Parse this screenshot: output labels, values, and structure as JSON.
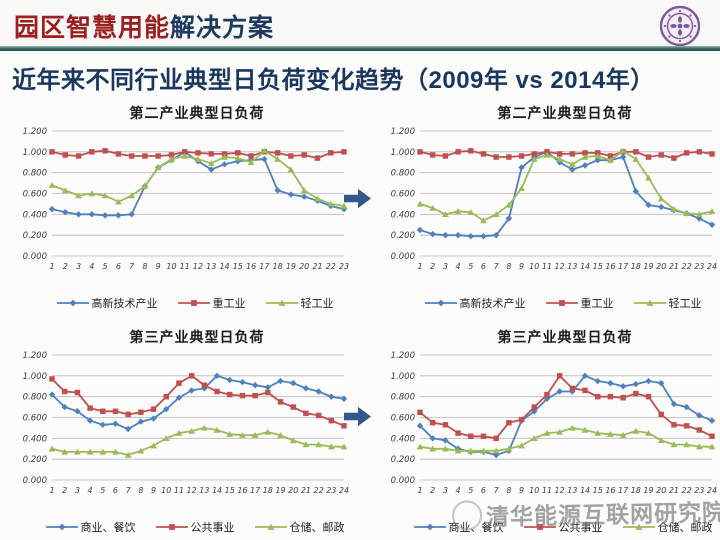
{
  "slide": {
    "header": {
      "title_red": "园区智慧用能",
      "title_blue": "解决方案",
      "logo_name": "tsinghua-university-seal"
    },
    "banner_title": "近年来不同行业典型日负荷变化趋势（2009年 vs 2014年）",
    "watermark": "清华能源互联网研究院"
  },
  "colors": {
    "series_blue": "#4F81BD",
    "series_red": "#C0504D",
    "series_green": "#9BBB59",
    "arrow_blue": "#31598E",
    "banner_text": "#17375E",
    "header_red": "#9C1E1E",
    "header_navy": "#1F3A5F",
    "gridline": "#B8B8B8"
  },
  "chart_data": [
    {
      "id": "secondary-industry-2009",
      "type": "line",
      "title": "第二产业典型日负荷",
      "x": [
        1,
        2,
        3,
        4,
        5,
        6,
        7,
        8,
        9,
        10,
        11,
        12,
        13,
        14,
        15,
        16,
        17,
        18,
        19,
        20,
        21,
        22,
        23
      ],
      "ylim": [
        0,
        1.2
      ],
      "ytick_step": 0.2,
      "grid": true,
      "legend_position": "bottom",
      "series": [
        {
          "name": "高新技术产业",
          "color": "#4F81BD",
          "marker": "diamond",
          "values": [
            0.45,
            0.42,
            0.4,
            0.4,
            0.39,
            0.39,
            0.4,
            0.67,
            0.85,
            0.92,
            1.0,
            0.91,
            0.83,
            0.88,
            0.91,
            0.92,
            0.93,
            0.63,
            0.59,
            0.57,
            0.53,
            0.48,
            0.45
          ]
        },
        {
          "name": "重工业",
          "color": "#C0504D",
          "marker": "square",
          "values": [
            1.0,
            0.97,
            0.96,
            1.0,
            1.01,
            0.98,
            0.96,
            0.96,
            0.96,
            0.97,
            1.0,
            0.99,
            0.98,
            0.98,
            0.99,
            0.96,
            1.0,
            0.99,
            0.96,
            0.97,
            0.94,
            0.99,
            1.0
          ]
        },
        {
          "name": "轻工业",
          "color": "#9BBB59",
          "marker": "triangle",
          "values": [
            0.68,
            0.63,
            0.58,
            0.6,
            0.58,
            0.52,
            0.58,
            0.67,
            0.85,
            0.93,
            0.96,
            0.93,
            0.89,
            0.95,
            0.94,
            0.9,
            1.01,
            0.93,
            0.83,
            0.63,
            0.55,
            0.5,
            0.48
          ]
        }
      ]
    },
    {
      "id": "secondary-industry-2014",
      "type": "line",
      "title": "第二产业典型日负荷",
      "x": [
        1,
        2,
        3,
        4,
        5,
        6,
        7,
        8,
        9,
        10,
        11,
        12,
        13,
        14,
        15,
        16,
        17,
        18,
        19,
        20,
        21,
        22,
        23,
        24
      ],
      "ylim": [
        0,
        1.2
      ],
      "ytick_step": 0.2,
      "grid": true,
      "legend_position": "bottom",
      "series": [
        {
          "name": "高新技术产业",
          "color": "#4F81BD",
          "marker": "diamond",
          "values": [
            0.25,
            0.21,
            0.2,
            0.2,
            0.19,
            0.19,
            0.2,
            0.36,
            0.85,
            0.95,
            1.0,
            0.9,
            0.83,
            0.87,
            0.92,
            0.92,
            0.95,
            0.62,
            0.49,
            0.47,
            0.44,
            0.41,
            0.36,
            0.3
          ]
        },
        {
          "name": "重工业",
          "color": "#C0504D",
          "marker": "square",
          "values": [
            1.0,
            0.97,
            0.96,
            1.0,
            1.01,
            0.98,
            0.95,
            0.95,
            0.96,
            0.98,
            1.0,
            0.98,
            0.98,
            0.99,
            0.99,
            0.96,
            1.0,
            1.0,
            0.95,
            0.97,
            0.94,
            0.99,
            1.0,
            0.98
          ]
        },
        {
          "name": "轻工业",
          "color": "#9BBB59",
          "marker": "triangle",
          "values": [
            0.5,
            0.46,
            0.4,
            0.43,
            0.42,
            0.34,
            0.4,
            0.49,
            0.65,
            0.93,
            0.97,
            0.93,
            0.88,
            0.95,
            0.96,
            0.92,
            1.01,
            0.93,
            0.75,
            0.55,
            0.45,
            0.41,
            0.4,
            0.43
          ]
        }
      ]
    },
    {
      "id": "tertiary-industry-2009",
      "type": "line",
      "title": "第三产业典型日负荷",
      "x": [
        1,
        2,
        3,
        4,
        5,
        6,
        7,
        8,
        9,
        10,
        11,
        12,
        13,
        14,
        15,
        16,
        17,
        18,
        19,
        20,
        21,
        22,
        23,
        24
      ],
      "ylim": [
        0,
        1.2
      ],
      "ytick_step": 0.2,
      "grid": true,
      "legend_position": "bottom",
      "series": [
        {
          "name": "商业、餐饮",
          "color": "#4F81BD",
          "marker": "diamond",
          "values": [
            0.82,
            0.7,
            0.66,
            0.57,
            0.53,
            0.54,
            0.49,
            0.56,
            0.59,
            0.68,
            0.79,
            0.86,
            0.88,
            1.0,
            0.96,
            0.94,
            0.91,
            0.89,
            0.95,
            0.93,
            0.88,
            0.85,
            0.8,
            0.78
          ]
        },
        {
          "name": "公共事业",
          "color": "#C0504D",
          "marker": "square",
          "values": [
            0.97,
            0.85,
            0.84,
            0.69,
            0.66,
            0.66,
            0.63,
            0.65,
            0.68,
            0.8,
            0.93,
            1.0,
            0.91,
            0.85,
            0.82,
            0.81,
            0.81,
            0.84,
            0.75,
            0.7,
            0.64,
            0.62,
            0.57,
            0.52
          ]
        },
        {
          "name": "仓储、邮政",
          "color": "#9BBB59",
          "marker": "triangle",
          "values": [
            0.3,
            0.27,
            0.27,
            0.27,
            0.27,
            0.27,
            0.24,
            0.28,
            0.33,
            0.4,
            0.45,
            0.47,
            0.5,
            0.48,
            0.44,
            0.43,
            0.43,
            0.46,
            0.43,
            0.38,
            0.34,
            0.34,
            0.32,
            0.32
          ]
        }
      ]
    },
    {
      "id": "tertiary-industry-2014",
      "type": "line",
      "title": "第三产业典型日负荷",
      "x": [
        1,
        2,
        3,
        4,
        5,
        6,
        7,
        8,
        9,
        10,
        11,
        12,
        13,
        14,
        15,
        16,
        17,
        18,
        19,
        20,
        21,
        22,
        23,
        24
      ],
      "ylim": [
        0,
        1.2
      ],
      "ytick_step": 0.2,
      "grid": true,
      "legend_position": "bottom",
      "series": [
        {
          "name": "商业、餐饮",
          "color": "#4F81BD",
          "marker": "diamond",
          "values": [
            0.52,
            0.4,
            0.38,
            0.3,
            0.27,
            0.27,
            0.24,
            0.28,
            0.57,
            0.66,
            0.78,
            0.85,
            0.85,
            1.0,
            0.95,
            0.93,
            0.9,
            0.92,
            0.95,
            0.93,
            0.73,
            0.7,
            0.62,
            0.57
          ]
        },
        {
          "name": "公共事业",
          "color": "#C0504D",
          "marker": "square",
          "values": [
            0.65,
            0.55,
            0.53,
            0.45,
            0.42,
            0.42,
            0.4,
            0.55,
            0.58,
            0.7,
            0.82,
            1.0,
            0.88,
            0.86,
            0.8,
            0.8,
            0.79,
            0.83,
            0.8,
            0.63,
            0.53,
            0.52,
            0.48,
            0.42
          ]
        },
        {
          "name": "仓储、邮政",
          "color": "#9BBB59",
          "marker": "triangle",
          "values": [
            0.32,
            0.3,
            0.3,
            0.28,
            0.28,
            0.28,
            0.28,
            0.3,
            0.33,
            0.4,
            0.45,
            0.46,
            0.5,
            0.48,
            0.45,
            0.44,
            0.43,
            0.47,
            0.45,
            0.38,
            0.34,
            0.34,
            0.32,
            0.32
          ]
        }
      ]
    }
  ]
}
